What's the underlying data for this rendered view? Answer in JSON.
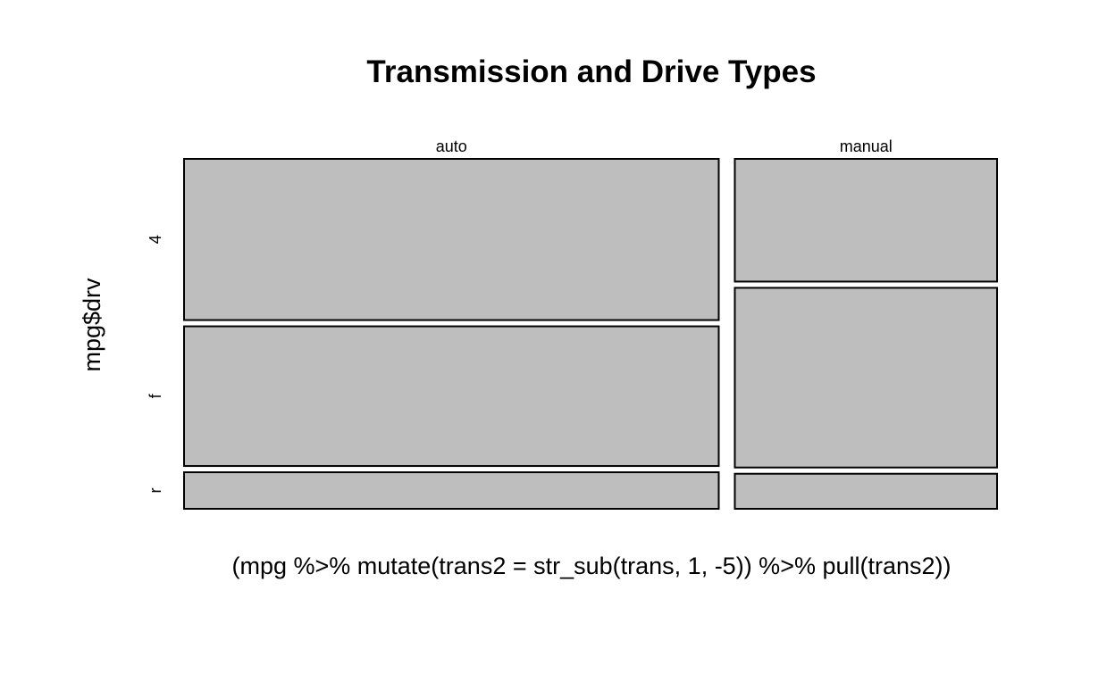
{
  "chart_data": {
    "type": "mosaic",
    "title": "Transmission and Drive Types",
    "xlabel": "(mpg %>% mutate(trans2 = str_sub(trans, 1, -5)) %>% pull(trans2))",
    "ylabel": "mpg$drv",
    "columns": [
      "auto",
      "manual"
    ],
    "rows": [
      "4",
      "f",
      "r"
    ],
    "counts": [
      [
        75,
        65,
        17
      ],
      [
        28,
        41,
        8
      ]
    ],
    "fill_color": "#BEBEBE",
    "border_color": "#000000"
  }
}
